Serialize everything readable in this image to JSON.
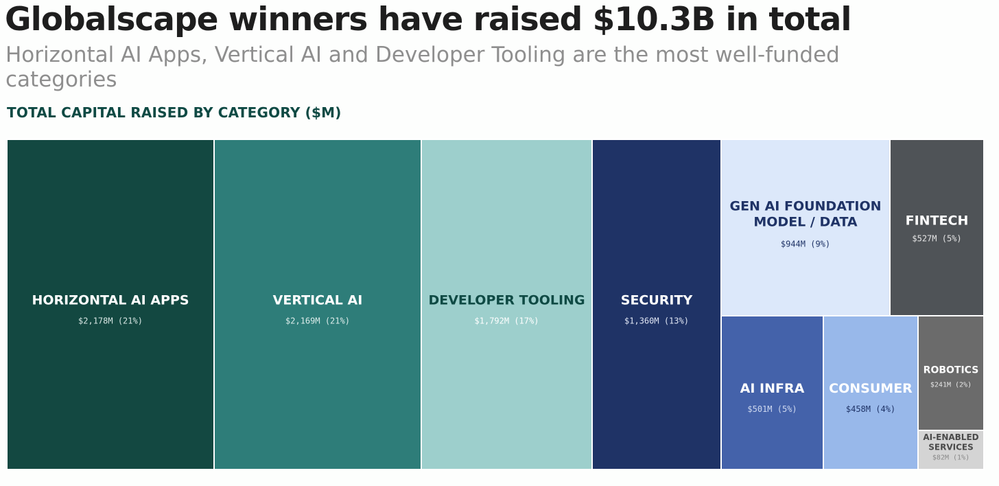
{
  "header": {
    "title": "Globalscape winners have raised $10.3B in total",
    "subtitle": "Horizontal AI Apps, Vertical AI and Developer Tooling are the most well-funded categories",
    "chart_label": "TOTAL CAPITAL RAISED BY CATEGORY ($M)"
  },
  "chart_data": {
    "type": "treemap",
    "title": "TOTAL CAPITAL RAISED BY CATEGORY ($M)",
    "unit": "$M",
    "total": 10252,
    "items": [
      {
        "name": "HORIZONTAL AI APPS",
        "value": 2178,
        "label": "$2,178M (21%)",
        "pct": 21,
        "color": "#134841",
        "text_color": "#ffffff",
        "value_color": "#d6e5e2"
      },
      {
        "name": "VERTICAL AI",
        "value": 2169,
        "label": "$2,169M (21%)",
        "pct": 21,
        "color": "#2e7d79",
        "text_color": "#ffffff",
        "value_color": "#dcecea"
      },
      {
        "name": "DEVELOPER TOOLING",
        "value": 1792,
        "label": "$1,792M (17%)",
        "pct": 17,
        "color": "#9dcfcc",
        "text_color": "#0f4a44",
        "value_color": "#ffffff"
      },
      {
        "name": "SECURITY",
        "value": 1360,
        "label": "$1,360M (13%)",
        "pct": 13,
        "color": "#1f3366",
        "text_color": "#ffffff",
        "value_color": "#dfe5f3"
      },
      {
        "name": "GEN AI FOUNDATION MODEL / DATA",
        "value": 944,
        "label": "$944M (9%)",
        "pct": 9,
        "color": "#dce8fa",
        "text_color": "#1f3366",
        "value_color": "#1f3366"
      },
      {
        "name": "FINTECH",
        "value": 527,
        "label": "$527M (5%)",
        "pct": 5,
        "color": "#4f5357",
        "text_color": "#ffffff",
        "value_color": "#e6e6e6"
      },
      {
        "name": "AI INFRA",
        "value": 501,
        "label": "$501M (5%)",
        "pct": 5,
        "color": "#4462aa",
        "text_color": "#ffffff",
        "value_color": "#cfd9f0"
      },
      {
        "name": "CONSUMER",
        "value": 458,
        "label": "$458M (4%)",
        "pct": 4,
        "color": "#98b8ea",
        "text_color": "#ffffff",
        "value_color": "#1f3366"
      },
      {
        "name": "ROBOTICS",
        "value": 241,
        "label": "$241M (2%)",
        "pct": 2,
        "color": "#6b6b6b",
        "text_color": "#ffffff",
        "value_color": "#e6e6e6"
      },
      {
        "name": "AI-ENABLED SERVICES",
        "value": 82,
        "label": "$82M (1%)",
        "pct": 1,
        "color": "#d4d4d4",
        "text_color": "#4a4a4a",
        "value_color": "#8a8a8a"
      }
    ]
  }
}
